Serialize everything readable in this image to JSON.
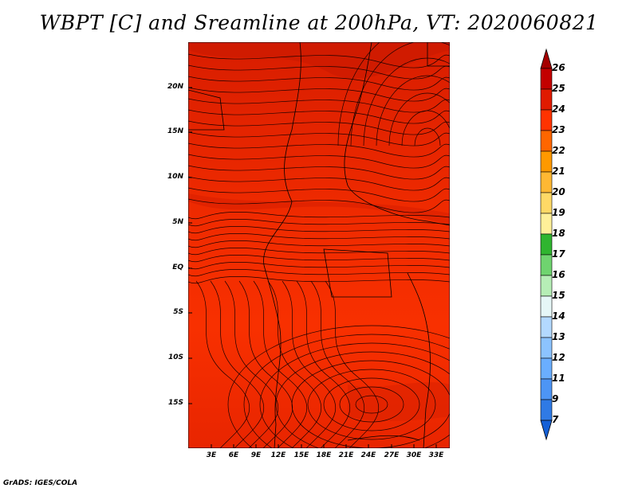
{
  "title": "WBPT [C] and Sreamline at 200hPa, VT: 2020060821",
  "credit": "GrADS: IGES/COLA",
  "map": {
    "lat_ticks": [
      "20N",
      "15N",
      "10N",
      "5N",
      "EQ",
      "5S",
      "10S",
      "15S"
    ],
    "lon_ticks": [
      "3E",
      "6E",
      "9E",
      "12E",
      "15E",
      "18E",
      "21E",
      "24E",
      "27E",
      "30E",
      "33E"
    ],
    "field": "WBPT",
    "field_range": [
      23,
      25
    ],
    "dominant_color": "#ff3300",
    "overlay": "streamlines"
  },
  "colorbar": {
    "labels": [
      "26",
      "25",
      "24",
      "23",
      "22",
      "21",
      "20",
      "19",
      "18",
      "17",
      "16",
      "15",
      "14",
      "13",
      "12",
      "11",
      "9",
      "7"
    ],
    "colors": [
      "#a50000",
      "#c30000",
      "#e01b00",
      "#ff3300",
      "#ff6600",
      "#ff9900",
      "#ffb833",
      "#ffd966",
      "#fff099",
      "#2fb52f",
      "#6fd46f",
      "#b6eeb6",
      "#e6f7f7",
      "#b3d9ff",
      "#8cc3ff",
      "#6aaeff",
      "#4d95f5",
      "#2f7ae5",
      "#1560d6"
    ]
  }
}
